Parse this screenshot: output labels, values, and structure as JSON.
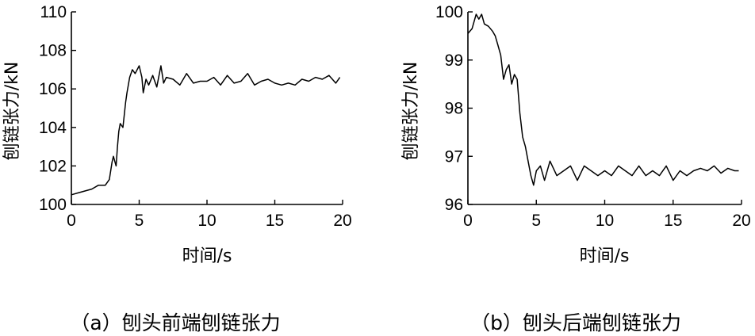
{
  "chart_data": [
    {
      "type": "line",
      "caption": "（a）刨头前端刨链张力",
      "xlabel": "时间/s",
      "ylabel": "刨链张力/kN",
      "xlim": [
        0,
        20
      ],
      "ylim": [
        100,
        110
      ],
      "xticks": [
        0,
        5,
        10,
        15,
        20
      ],
      "yticks": [
        100,
        102,
        104,
        106,
        108,
        110
      ],
      "xtick_labels": [
        "0",
        "5",
        "10",
        "15",
        "20"
      ],
      "ytick_labels": [
        "100",
        "102",
        "104",
        "106",
        "108",
        "110"
      ],
      "grid": false,
      "series": [
        {
          "x": [
            0.0,
            0.5,
            1.0,
            1.5,
            2.0,
            2.5,
            2.8,
            3.0,
            3.1,
            3.3,
            3.4,
            3.5,
            3.6,
            3.8,
            4.0,
            4.1,
            4.3,
            4.5,
            4.7,
            5.0,
            5.2,
            5.3,
            5.5,
            5.7,
            6.0,
            6.3,
            6.6,
            6.8,
            7.0,
            7.5,
            8.0,
            8.5,
            9.0,
            9.5,
            10.0,
            10.5,
            11.0,
            11.5,
            12.0,
            12.5,
            13.0,
            13.5,
            14.0,
            14.5,
            15.0,
            15.5,
            16.0,
            16.5,
            17.0,
            17.5,
            18.0,
            18.5,
            19.0,
            19.5,
            19.8
          ],
          "values": [
            100.5,
            100.6,
            100.7,
            100.8,
            101.0,
            101.0,
            101.3,
            102.2,
            102.5,
            102.0,
            103.0,
            103.8,
            104.2,
            104.0,
            105.3,
            105.8,
            106.6,
            107.0,
            106.8,
            107.2,
            106.6,
            105.8,
            106.5,
            106.2,
            106.7,
            106.1,
            107.2,
            106.3,
            106.6,
            106.5,
            106.2,
            106.8,
            106.3,
            106.4,
            106.4,
            106.6,
            106.2,
            106.7,
            106.3,
            106.4,
            106.8,
            106.2,
            106.4,
            106.5,
            106.3,
            106.2,
            106.3,
            106.2,
            106.5,
            106.4,
            106.6,
            106.5,
            106.7,
            106.3,
            106.6
          ]
        }
      ]
    },
    {
      "type": "line",
      "caption": "（b）刨头后端刨链张力",
      "xlabel": "时间/s",
      "ylabel": "刨链张力/kN",
      "xlim": [
        0,
        20
      ],
      "ylim": [
        96,
        100
      ],
      "xticks": [
        0,
        5,
        10,
        15,
        20
      ],
      "yticks": [
        96,
        97,
        98,
        99,
        100
      ],
      "xtick_labels": [
        "0",
        "5",
        "10",
        "15",
        "20"
      ],
      "ytick_labels": [
        "96",
        "97",
        "98",
        "99",
        "100"
      ],
      "grid": false,
      "series": [
        {
          "x": [
            0.0,
            0.3,
            0.6,
            0.8,
            1.0,
            1.2,
            1.5,
            1.8,
            2.0,
            2.2,
            2.4,
            2.6,
            2.8,
            3.0,
            3.2,
            3.4,
            3.6,
            3.8,
            4.0,
            4.2,
            4.4,
            4.6,
            4.8,
            5.0,
            5.3,
            5.6,
            6.0,
            6.5,
            7.0,
            7.5,
            8.0,
            8.5,
            9.0,
            9.5,
            10.0,
            10.5,
            11.0,
            11.5,
            12.0,
            12.5,
            13.0,
            13.5,
            14.0,
            14.5,
            15.0,
            15.5,
            16.0,
            16.5,
            17.0,
            17.5,
            18.0,
            18.5,
            19.0,
            19.5,
            19.8
          ],
          "values": [
            99.55,
            99.65,
            99.95,
            99.85,
            99.95,
            99.75,
            99.7,
            99.6,
            99.5,
            99.3,
            99.1,
            98.6,
            98.8,
            98.9,
            98.5,
            98.7,
            98.6,
            97.9,
            97.4,
            97.2,
            96.9,
            96.6,
            96.4,
            96.7,
            96.8,
            96.5,
            96.9,
            96.6,
            96.7,
            96.8,
            96.5,
            96.8,
            96.7,
            96.6,
            96.7,
            96.6,
            96.8,
            96.7,
            96.6,
            96.8,
            96.6,
            96.7,
            96.6,
            96.8,
            96.5,
            96.7,
            96.6,
            96.7,
            96.75,
            96.7,
            96.8,
            96.65,
            96.75,
            96.7,
            96.7
          ]
        }
      ]
    }
  ]
}
